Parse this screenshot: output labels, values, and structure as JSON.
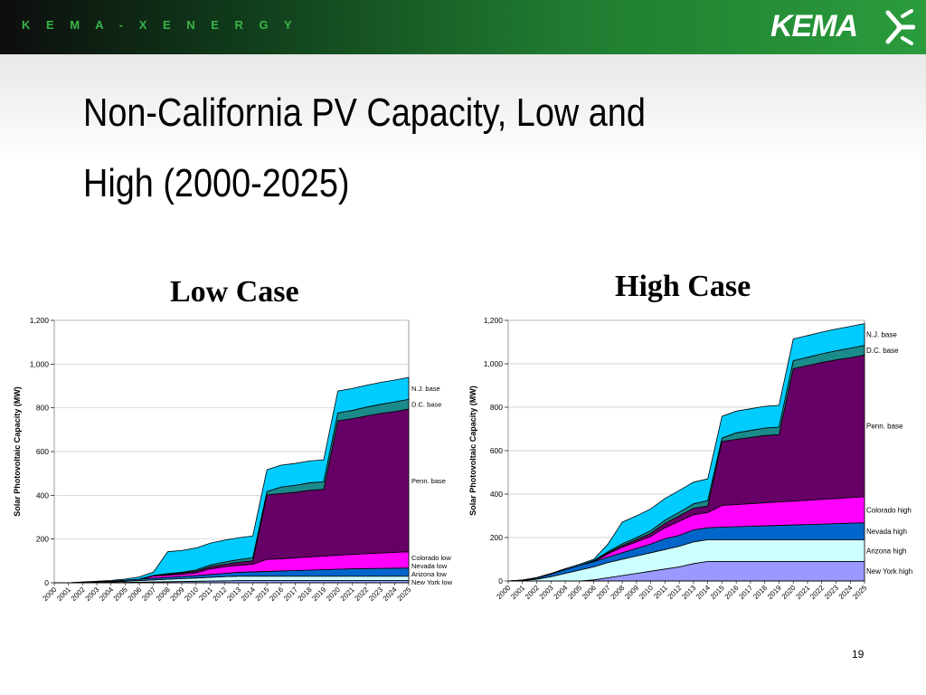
{
  "header": {
    "tagline": "K E M A - X E N E R G Y",
    "logo_text": "KEMA"
  },
  "slide": {
    "title": "Non-California PV Capacity, Low and High (2000-2025)",
    "page_number": "19"
  },
  "colors": {
    "new_york": "#9999ff",
    "arizona": "#ccffff",
    "nevada": "#0066cc",
    "colorado": "#ff00ff",
    "penn": "#660066",
    "dc": "#1b8a8a",
    "nj": "#00ccff"
  },
  "chart_data": [
    {
      "type": "area",
      "stacked": true,
      "title": "Low Case",
      "ylabel": "Solar Photovoltaic Capacity (MW)",
      "xlabel": "",
      "ylim": [
        0,
        1200
      ],
      "yticks": [
        "0",
        "200",
        "400",
        "600",
        "800",
        "1,000",
        "1,200"
      ],
      "ytick_values": [
        0,
        200,
        400,
        600,
        800,
        1000,
        1200
      ],
      "categories": [
        "2000",
        "2001",
        "2002",
        "2003",
        "2004",
        "2005",
        "2006",
        "2007",
        "2008",
        "2009",
        "2010",
        "2011",
        "2012",
        "2013",
        "2014",
        "2015",
        "2016",
        "2017",
        "2018",
        "2019",
        "2020",
        "2021",
        "2022",
        "2023",
        "2024",
        "2025"
      ],
      "grid": true,
      "legend": "right",
      "series": [
        {
          "name": "New York low",
          "color_key": "new_york",
          "values": [
            0,
            0,
            0,
            0,
            1,
            2,
            3,
            4,
            5,
            6,
            7,
            8,
            9,
            10,
            10,
            10,
            10,
            10,
            10,
            10,
            10,
            10,
            10,
            10,
            10,
            10
          ]
        },
        {
          "name": "Arizona low",
          "color_key": "arizona",
          "values": [
            0,
            0,
            1,
            2,
            3,
            5,
            7,
            9,
            11,
            13,
            15,
            17,
            19,
            20,
            20,
            20,
            20,
            20,
            20,
            20,
            20,
            20,
            20,
            20,
            20,
            20
          ]
        },
        {
          "name": "Nevada low",
          "color_key": "nevada",
          "values": [
            0,
            0,
            1,
            2,
            3,
            5,
            7,
            8,
            9,
            10,
            11,
            13,
            15,
            18,
            20,
            22,
            24,
            26,
            28,
            30,
            32,
            34,
            35,
            36,
            37,
            38
          ]
        },
        {
          "name": "Colorado low",
          "color_key": "colorado",
          "values": [
            0,
            0,
            0,
            0,
            0,
            0,
            0,
            10,
            10,
            10,
            12,
            25,
            30,
            32,
            35,
            55,
            56,
            58,
            60,
            62,
            64,
            66,
            68,
            70,
            72,
            74
          ]
        },
        {
          "name": "Penn. base",
          "color_key": "penn",
          "values": [
            0,
            0,
            0,
            0,
            0,
            0,
            0,
            0,
            4,
            6,
            8,
            10,
            12,
            14,
            15,
            295,
            298,
            300,
            305,
            305,
            615,
            620,
            630,
            638,
            644,
            652
          ]
        },
        {
          "name": "D.C. base",
          "color_key": "dc",
          "values": [
            0,
            0,
            0,
            0,
            0,
            0,
            0,
            3,
            3,
            3,
            6,
            8,
            10,
            12,
            14,
            15,
            30,
            32,
            34,
            35,
            36,
            38,
            40,
            42,
            44,
            45
          ]
        },
        {
          "name": "N.J. base",
          "color_key": "nj",
          "values": [
            0,
            0,
            2,
            3,
            4,
            5,
            10,
            15,
            100,
            100,
            100,
            100,
            100,
            100,
            100,
            100,
            100,
            100,
            100,
            100,
            100,
            100,
            100,
            100,
            100,
            100
          ]
        }
      ]
    },
    {
      "type": "area",
      "stacked": true,
      "title": "High Case",
      "ylabel": "Solar Photovoltaic Capacity (MW)",
      "xlabel": "",
      "ylim": [
        0,
        1200
      ],
      "yticks": [
        "0",
        "200",
        "400",
        "600",
        "800",
        "1,000",
        "1,200"
      ],
      "ytick_values": [
        0,
        200,
        400,
        600,
        800,
        1000,
        1200
      ],
      "categories": [
        "2000",
        "2001",
        "2002",
        "2003",
        "2004",
        "2005",
        "2006",
        "2007",
        "2008",
        "2009",
        "2010",
        "2011",
        "2012",
        "2013",
        "2014",
        "2015",
        "2016",
        "2017",
        "2018",
        "2019",
        "2020",
        "2021",
        "2022",
        "2023",
        "2024",
        "2025"
      ],
      "grid": true,
      "legend": "right",
      "series": [
        {
          "name": "New York high",
          "color_key": "new_york",
          "values": [
            0,
            0,
            0,
            0,
            0,
            0,
            5,
            15,
            25,
            35,
            45,
            55,
            65,
            80,
            90,
            90,
            90,
            90,
            90,
            90,
            90,
            90,
            90,
            90,
            90,
            90
          ]
        },
        {
          "name": "Arizona high",
          "color_key": "arizona",
          "values": [
            0,
            2,
            8,
            20,
            35,
            50,
            60,
            70,
            75,
            80,
            85,
            90,
            95,
            100,
            100,
            100,
            100,
            100,
            100,
            100,
            100,
            100,
            100,
            100,
            100,
            100
          ]
        },
        {
          "name": "Nevada high",
          "color_key": "nevada",
          "values": [
            0,
            2,
            6,
            12,
            18,
            22,
            24,
            25,
            30,
            35,
            40,
            50,
            50,
            55,
            55,
            58,
            60,
            62,
            64,
            66,
            68,
            70,
            72,
            74,
            76,
            78
          ]
        },
        {
          "name": "Colorado high",
          "color_key": "colorado",
          "values": [
            0,
            0,
            0,
            0,
            0,
            0,
            0,
            15,
            25,
            30,
            35,
            50,
            65,
            70,
            70,
            100,
            102,
            104,
            106,
            108,
            110,
            112,
            114,
            116,
            118,
            120
          ]
        },
        {
          "name": "Penn. base",
          "color_key": "penn",
          "values": [
            0,
            0,
            0,
            0,
            0,
            0,
            2,
            5,
            8,
            10,
            15,
            20,
            25,
            30,
            30,
            295,
            300,
            305,
            310,
            310,
            610,
            620,
            630,
            638,
            644,
            652
          ]
        },
        {
          "name": "D.C. base",
          "color_key": "dc",
          "values": [
            0,
            0,
            0,
            0,
            0,
            0,
            3,
            5,
            8,
            10,
            12,
            15,
            17,
            20,
            25,
            15,
            30,
            32,
            34,
            35,
            36,
            38,
            40,
            42,
            44,
            45
          ]
        },
        {
          "name": "N.J. base",
          "color_key": "nj",
          "values": [
            0,
            0,
            2,
            3,
            4,
            5,
            6,
            35,
            100,
            100,
            100,
            100,
            100,
            100,
            100,
            100,
            100,
            100,
            100,
            100,
            100,
            100,
            100,
            100,
            100,
            100
          ]
        }
      ]
    }
  ]
}
